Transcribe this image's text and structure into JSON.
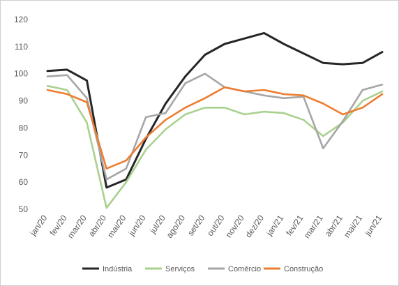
{
  "chart_data": {
    "type": "line",
    "categories": [
      "jan/20",
      "fev/20",
      "mar/20",
      "abr/20",
      "mai/20",
      "jun/20",
      "jul/20",
      "ago/20",
      "set/20",
      "out/20",
      "nov/20",
      "dez/20",
      "jan/21",
      "fev/21",
      "mar/21",
      "abr/21",
      "mai/21",
      "jun/21"
    ],
    "y_ticks": [
      "50",
      "60",
      "70",
      "80",
      "90",
      "100",
      "110",
      "120"
    ],
    "ylim": [
      50,
      120
    ],
    "grid": false,
    "legend_position": "bottom",
    "series": [
      {
        "name": "Indústria",
        "color": "#262626",
        "values": [
          101,
          101.5,
          97.5,
          58,
          61,
          76,
          89,
          99,
          107,
          111,
          113,
          115,
          111,
          107.5,
          104,
          103.5,
          104,
          108
        ]
      },
      {
        "name": "Serviços",
        "color": "#a9d18e",
        "values": [
          95.5,
          94,
          82,
          50.5,
          60,
          72,
          79.5,
          85,
          87.5,
          87.5,
          85,
          86,
          85.5,
          83,
          77,
          82,
          90,
          93.5
        ]
      },
      {
        "name": "Comércio",
        "color": "#a6a6a6",
        "values": [
          99,
          99.5,
          91,
          61,
          65,
          84,
          85.5,
          96.5,
          100,
          95,
          93.5,
          92,
          91,
          91.5,
          72.5,
          82.5,
          94,
          96
        ]
      },
      {
        "name": "Construção",
        "color": "#ed7d31",
        "values": [
          94,
          92.5,
          89.5,
          65,
          68,
          76.5,
          83,
          87.5,
          91,
          95,
          93.5,
          94,
          92.5,
          92,
          89,
          85,
          87.5,
          92.5
        ]
      }
    ]
  }
}
